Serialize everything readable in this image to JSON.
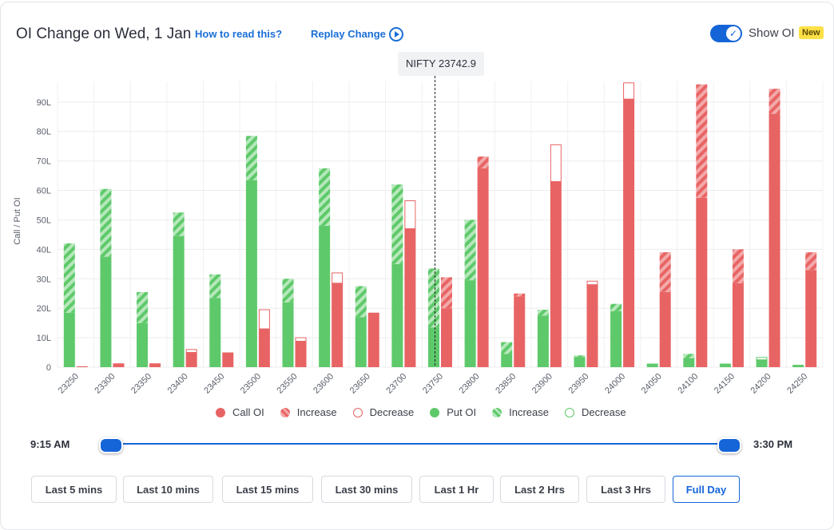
{
  "header": {
    "title": "OI Change on Wed, 1 Jan",
    "how_to_read": "How to read this?",
    "replay": "Replay Change",
    "toggle_label": "Show OI",
    "new_badge": "New"
  },
  "tooltip": {
    "nifty_label": "NIFTY 23742.9"
  },
  "chart_data": {
    "type": "bar",
    "ylabel": "Call / Put OI",
    "ylim": [
      0,
      95
    ],
    "yticks": [
      "0",
      "10L",
      "20L",
      "30L",
      "40L",
      "50L",
      "60L",
      "70L",
      "80L",
      "90L"
    ],
    "spot": 23742.9,
    "categories": [
      "23250",
      "23300",
      "23350",
      "23400",
      "23450",
      "23500",
      "23550",
      "23600",
      "23650",
      "23700",
      "23750",
      "23800",
      "23850",
      "23900",
      "23950",
      "24000",
      "24050",
      "24100",
      "24150",
      "24200",
      "24250"
    ],
    "series": [
      {
        "name": "Put OI",
        "base": [
          18.5,
          37.5,
          15,
          44.5,
          23.5,
          63.5,
          22,
          48,
          17,
          35,
          13.5,
          29.5,
          4.5,
          17.5,
          3.5,
          19,
          1.2,
          3,
          1.2,
          2.5,
          0.8
        ],
        "change": [
          23.5,
          23,
          10.5,
          8,
          8,
          15,
          8,
          19.5,
          10.5,
          27,
          20,
          20.5,
          4,
          2,
          0.5,
          2.5,
          0,
          1.5,
          0,
          0.8,
          0
        ]
      },
      {
        "name": "Call OI",
        "base": [
          0.3,
          1.3,
          1.3,
          5,
          5,
          13,
          8.8,
          28.5,
          18.5,
          47,
          20,
          67.5,
          24,
          63,
          28,
          91,
          25.5,
          57.5,
          28.5,
          86,
          33
        ],
        "change": [
          0,
          0,
          0,
          1,
          0,
          6.5,
          1.2,
          3.5,
          0,
          9.5,
          10.5,
          4,
          1,
          12.5,
          1.2,
          5.5,
          13.5,
          38.5,
          11.5,
          8.5,
          6
        ]
      }
    ],
    "change_type": {
      "Put OI": [
        "increase",
        "increase",
        "increase",
        "increase",
        "increase",
        "increase",
        "increase",
        "increase",
        "increase",
        "increase",
        "increase",
        "increase",
        "increase",
        "increase",
        "increase",
        "increase",
        "increase",
        "increase",
        "increase",
        "decrease",
        "increase"
      ],
      "Call OI": [
        "increase",
        "increase",
        "increase",
        "decrease",
        "increase",
        "decrease",
        "decrease",
        "decrease",
        "increase",
        "decrease",
        "increase",
        "increase",
        "increase",
        "decrease",
        "decrease",
        "decrease",
        "increase",
        "increase",
        "increase",
        "increase",
        "increase"
      ]
    }
  },
  "legend": [
    {
      "label": "Call OI",
      "kind": "call-solid"
    },
    {
      "label": "Increase",
      "kind": "call-increase"
    },
    {
      "label": "Decrease",
      "kind": "call-decrease"
    },
    {
      "label": "Put OI",
      "kind": "put-solid"
    },
    {
      "label": "Increase",
      "kind": "put-increase"
    },
    {
      "label": "Decrease",
      "kind": "put-decrease"
    }
  ],
  "colors": {
    "call": "#e86464",
    "put": "#5ec96a",
    "accent": "#1565d8"
  },
  "slider": {
    "start_time": "9:15 AM",
    "end_time": "3:30 PM"
  },
  "buttons": [
    "Last 5 mins",
    "Last 10 mins",
    "Last 15 mins",
    "Last 30 mins",
    "Last 1 Hr",
    "Last 2 Hrs",
    "Last 3 Hrs",
    "Full Day"
  ],
  "active_button": "Full Day"
}
